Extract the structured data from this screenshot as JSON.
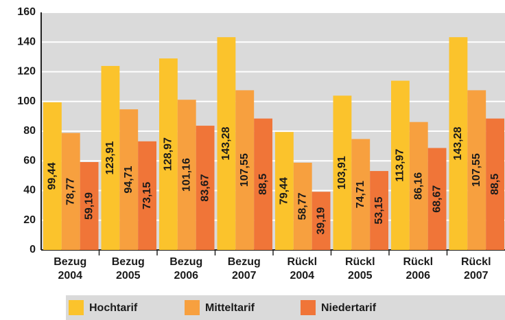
{
  "chart_data": {
    "type": "bar",
    "categories": [
      [
        "Bezug",
        "2004"
      ],
      [
        "Bezug",
        "2005"
      ],
      [
        "Bezug",
        "2006"
      ],
      [
        "Bezug",
        "2007"
      ],
      [
        "Rückl",
        "2004"
      ],
      [
        "Rückl",
        "2005"
      ],
      [
        "Rückl",
        "2006"
      ],
      [
        "Rückl",
        "2007"
      ]
    ],
    "series": [
      {
        "name": "Hochtarif",
        "color": "#fbc32c",
        "values": [
          99.44,
          123.91,
          128.97,
          143.28,
          79.44,
          103.91,
          113.97,
          143.28
        ],
        "value_labels": [
          "99,44",
          "123,91",
          "128,97",
          "143,28",
          "79,44",
          "103,91",
          "113,97",
          "143,28"
        ]
      },
      {
        "name": "Mitteltarif",
        "color": "#f7a03f",
        "values": [
          78.77,
          94.71,
          101.16,
          107.55,
          58.77,
          74.71,
          86.16,
          107.55
        ],
        "value_labels": [
          "78,77",
          "94,71",
          "101,16",
          "107,55",
          "58,77",
          "74,71",
          "86,16",
          "107,55"
        ]
      },
      {
        "name": "Niedertarif",
        "color": "#f07538",
        "values": [
          59.19,
          73.15,
          83.67,
          88.5,
          39.19,
          53.15,
          68.67,
          88.5
        ],
        "value_labels": [
          "59,19",
          "73,15",
          "83,67",
          "88,5",
          "39,19",
          "53,15",
          "68,67",
          "88,5"
        ]
      }
    ],
    "ylim": [
      0,
      160
    ],
    "yticks": [
      0,
      20,
      40,
      60,
      80,
      100,
      120,
      140,
      160
    ],
    "grid": true,
    "legend": "bottom"
  }
}
